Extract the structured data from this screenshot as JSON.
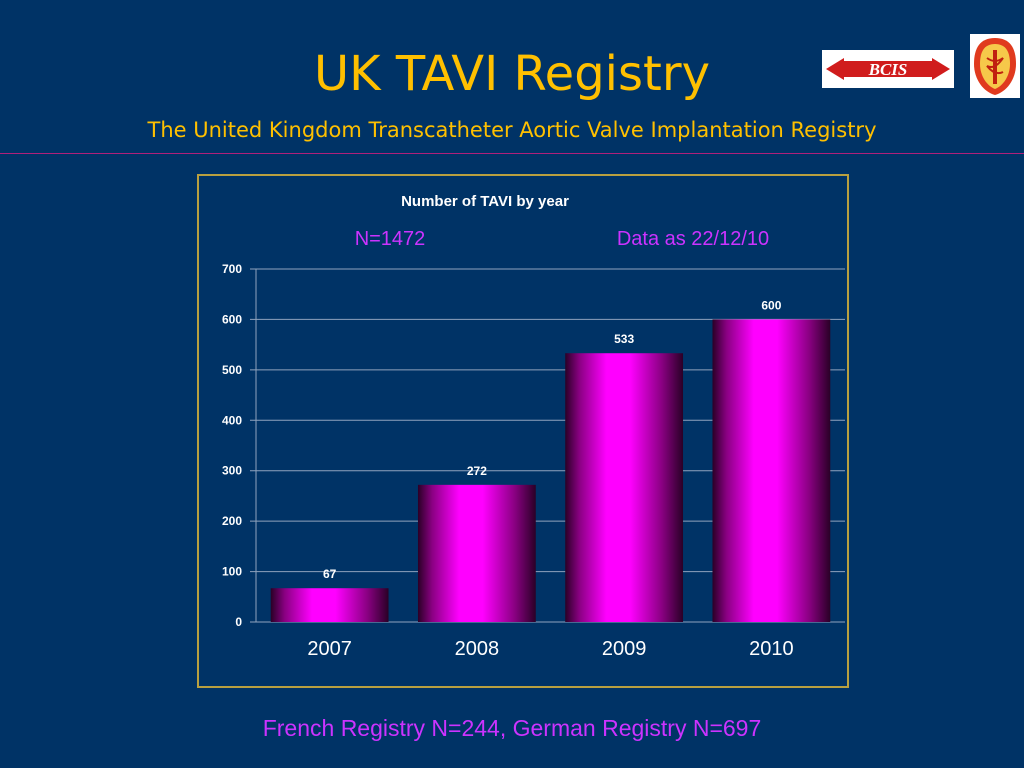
{
  "slide": {
    "title": "UK TAVI Registry",
    "subtitle": "The United Kingdom Transcatheter Aortic Valve Implantation Registry",
    "footer": "French Registry N=244, German Registry N=697",
    "colors": {
      "background": "#003366",
      "title": "#FFC000",
      "accent": "#CC33FF",
      "bar": "#FF00FF"
    }
  },
  "logos": {
    "bcis": {
      "text": "BCIS",
      "icon": "bcis-logo"
    },
    "crest": {
      "icon": "society-crest-logo"
    }
  },
  "chart_data": {
    "type": "bar",
    "title": "Number of TAVI by year",
    "annotations": [
      "N=1472",
      "Data as 22/12/10"
    ],
    "categories": [
      "2007",
      "2008",
      "2009",
      "2010"
    ],
    "values": [
      67,
      272,
      533,
      600
    ],
    "data_labels": [
      "67",
      "272",
      "533",
      "600"
    ],
    "y_ticks": [
      "0",
      "100",
      "200",
      "300",
      "400",
      "500",
      "600",
      "700"
    ],
    "ylim": [
      0,
      700
    ],
    "xlabel": "",
    "ylabel": "",
    "grid": true,
    "legend": false
  }
}
